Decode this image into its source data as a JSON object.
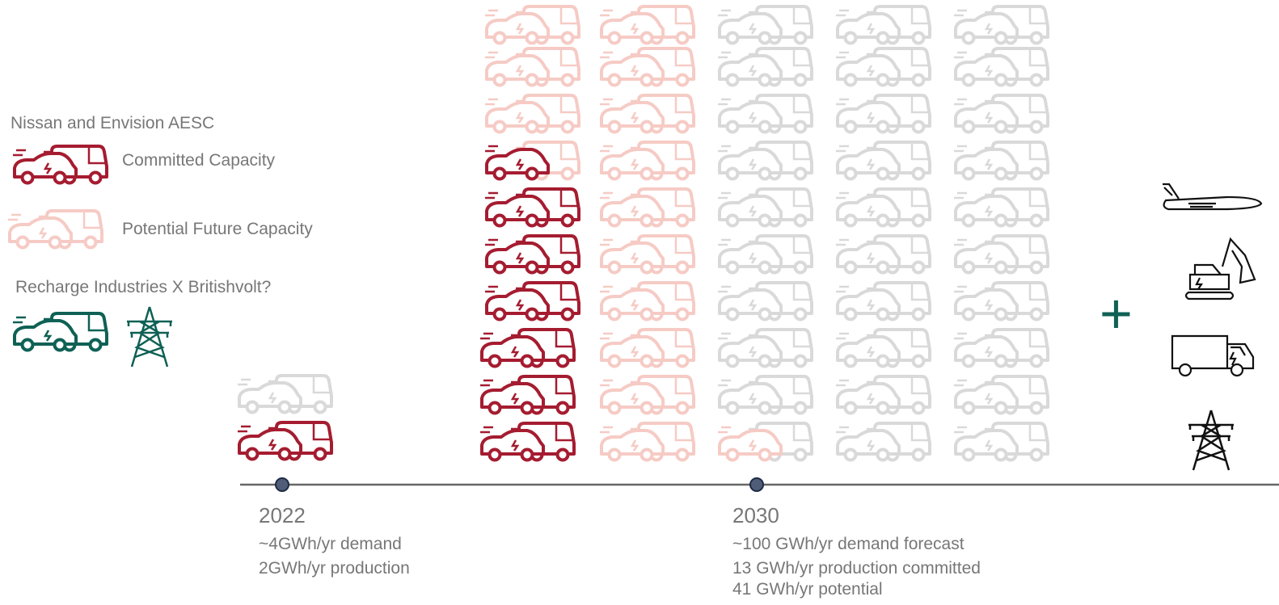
{
  "legend": {
    "title": "Nissan and Envision AESC",
    "committed": "Committed Capacity",
    "potential": "Potential Future Capacity",
    "second_title": "Recharge Industries X Britishvolt?"
  },
  "timeline": [
    {
      "year": "2022",
      "notes": [
        "~4GWh/yr demand",
        "2GWh/yr production"
      ]
    },
    {
      "year": "2030",
      "notes": [
        "~100 GWh/yr demand forecast",
        "13 GWh/yr production committed",
        "41 GWh/yr potential"
      ]
    }
  ]
}
